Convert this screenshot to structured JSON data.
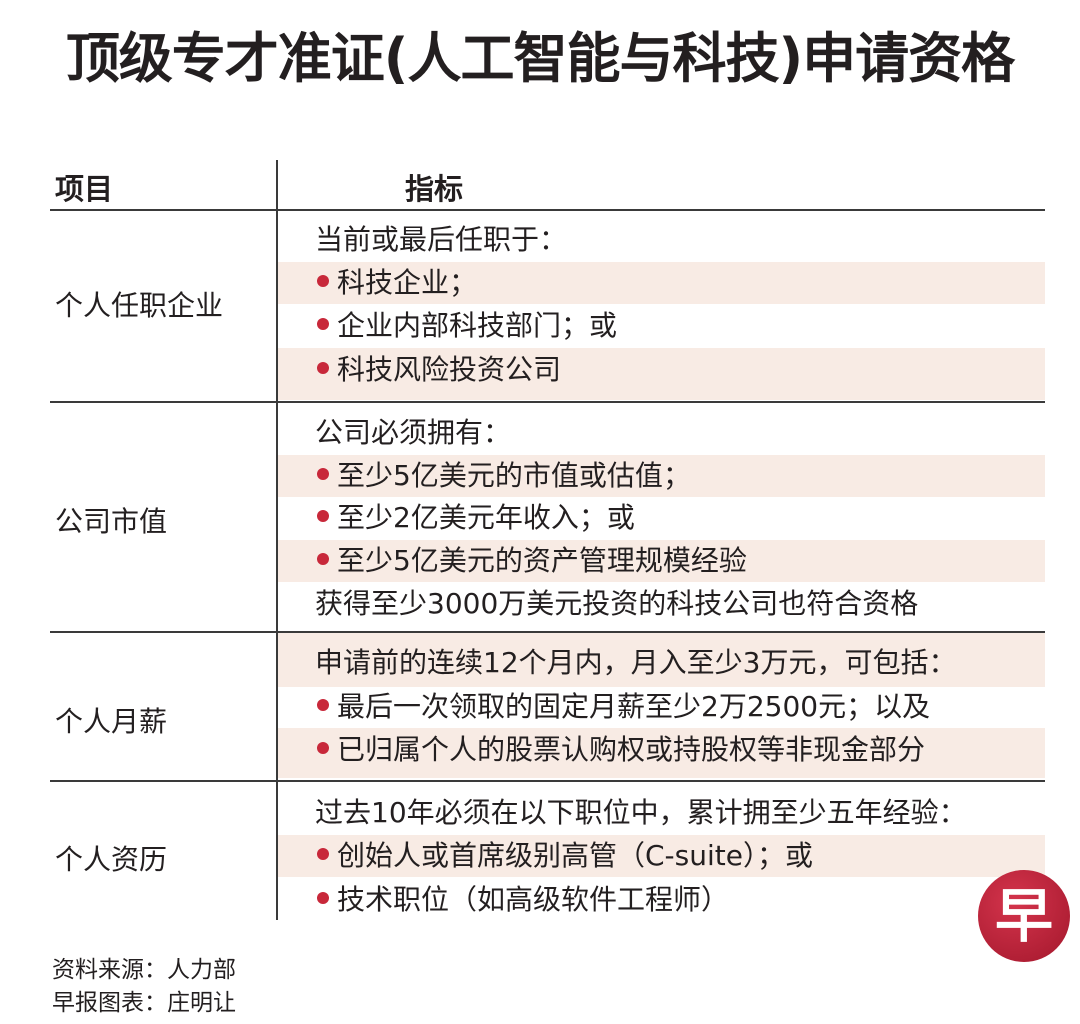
{
  "title": "顶级专才准证(人工智能与科技)申请资格",
  "header": {
    "col1": "项目",
    "col2": "指标"
  },
  "colors": {
    "bullet": "#c8283a",
    "stripe": "#f8ebe4",
    "logo": "#b81f35"
  },
  "rows": [
    {
      "label": "个人任职企业",
      "lines": [
        {
          "text": "当前或最后任职于：",
          "bullet": false
        },
        {
          "text": "科技企业；",
          "bullet": true
        },
        {
          "text": "企业内部科技部门；或",
          "bullet": true
        },
        {
          "text": "科技风险投资公司",
          "bullet": true
        }
      ]
    },
    {
      "label": "公司市值",
      "lines": [
        {
          "text": "公司必须拥有：",
          "bullet": false
        },
        {
          "text": "至少5亿美元的市值或估值；",
          "bullet": true
        },
        {
          "text": "至少2亿美元年收入；或",
          "bullet": true
        },
        {
          "text": "至少5亿美元的资产管理规模经验",
          "bullet": true
        },
        {
          "text": "获得至少3000万美元投资的科技公司也符合资格",
          "bullet": false
        }
      ]
    },
    {
      "label": "个人月薪",
      "lines": [
        {
          "text": "申请前的连续12个月内，月入至少3万元，可包括：",
          "bullet": false
        },
        {
          "text": "最后一次领取的固定月薪至少2万2500元；以及",
          "bullet": true
        },
        {
          "text": "已归属个人的股票认购权或持股权等非现金部分",
          "bullet": true
        }
      ]
    },
    {
      "label": "个人资历",
      "lines": [
        {
          "text": "过去10年必须在以下职位中，累计拥至少五年经验：",
          "bullet": false
        },
        {
          "text": "创始人或首席级别高管（C-suite）；或",
          "bullet": true
        },
        {
          "text": "技术职位（如高级软件工程师）",
          "bullet": true
        }
      ]
    }
  ],
  "footer": {
    "source": "资料来源：人力部",
    "credit": "早报图表：庄明让"
  },
  "logo": {
    "text": "早"
  }
}
